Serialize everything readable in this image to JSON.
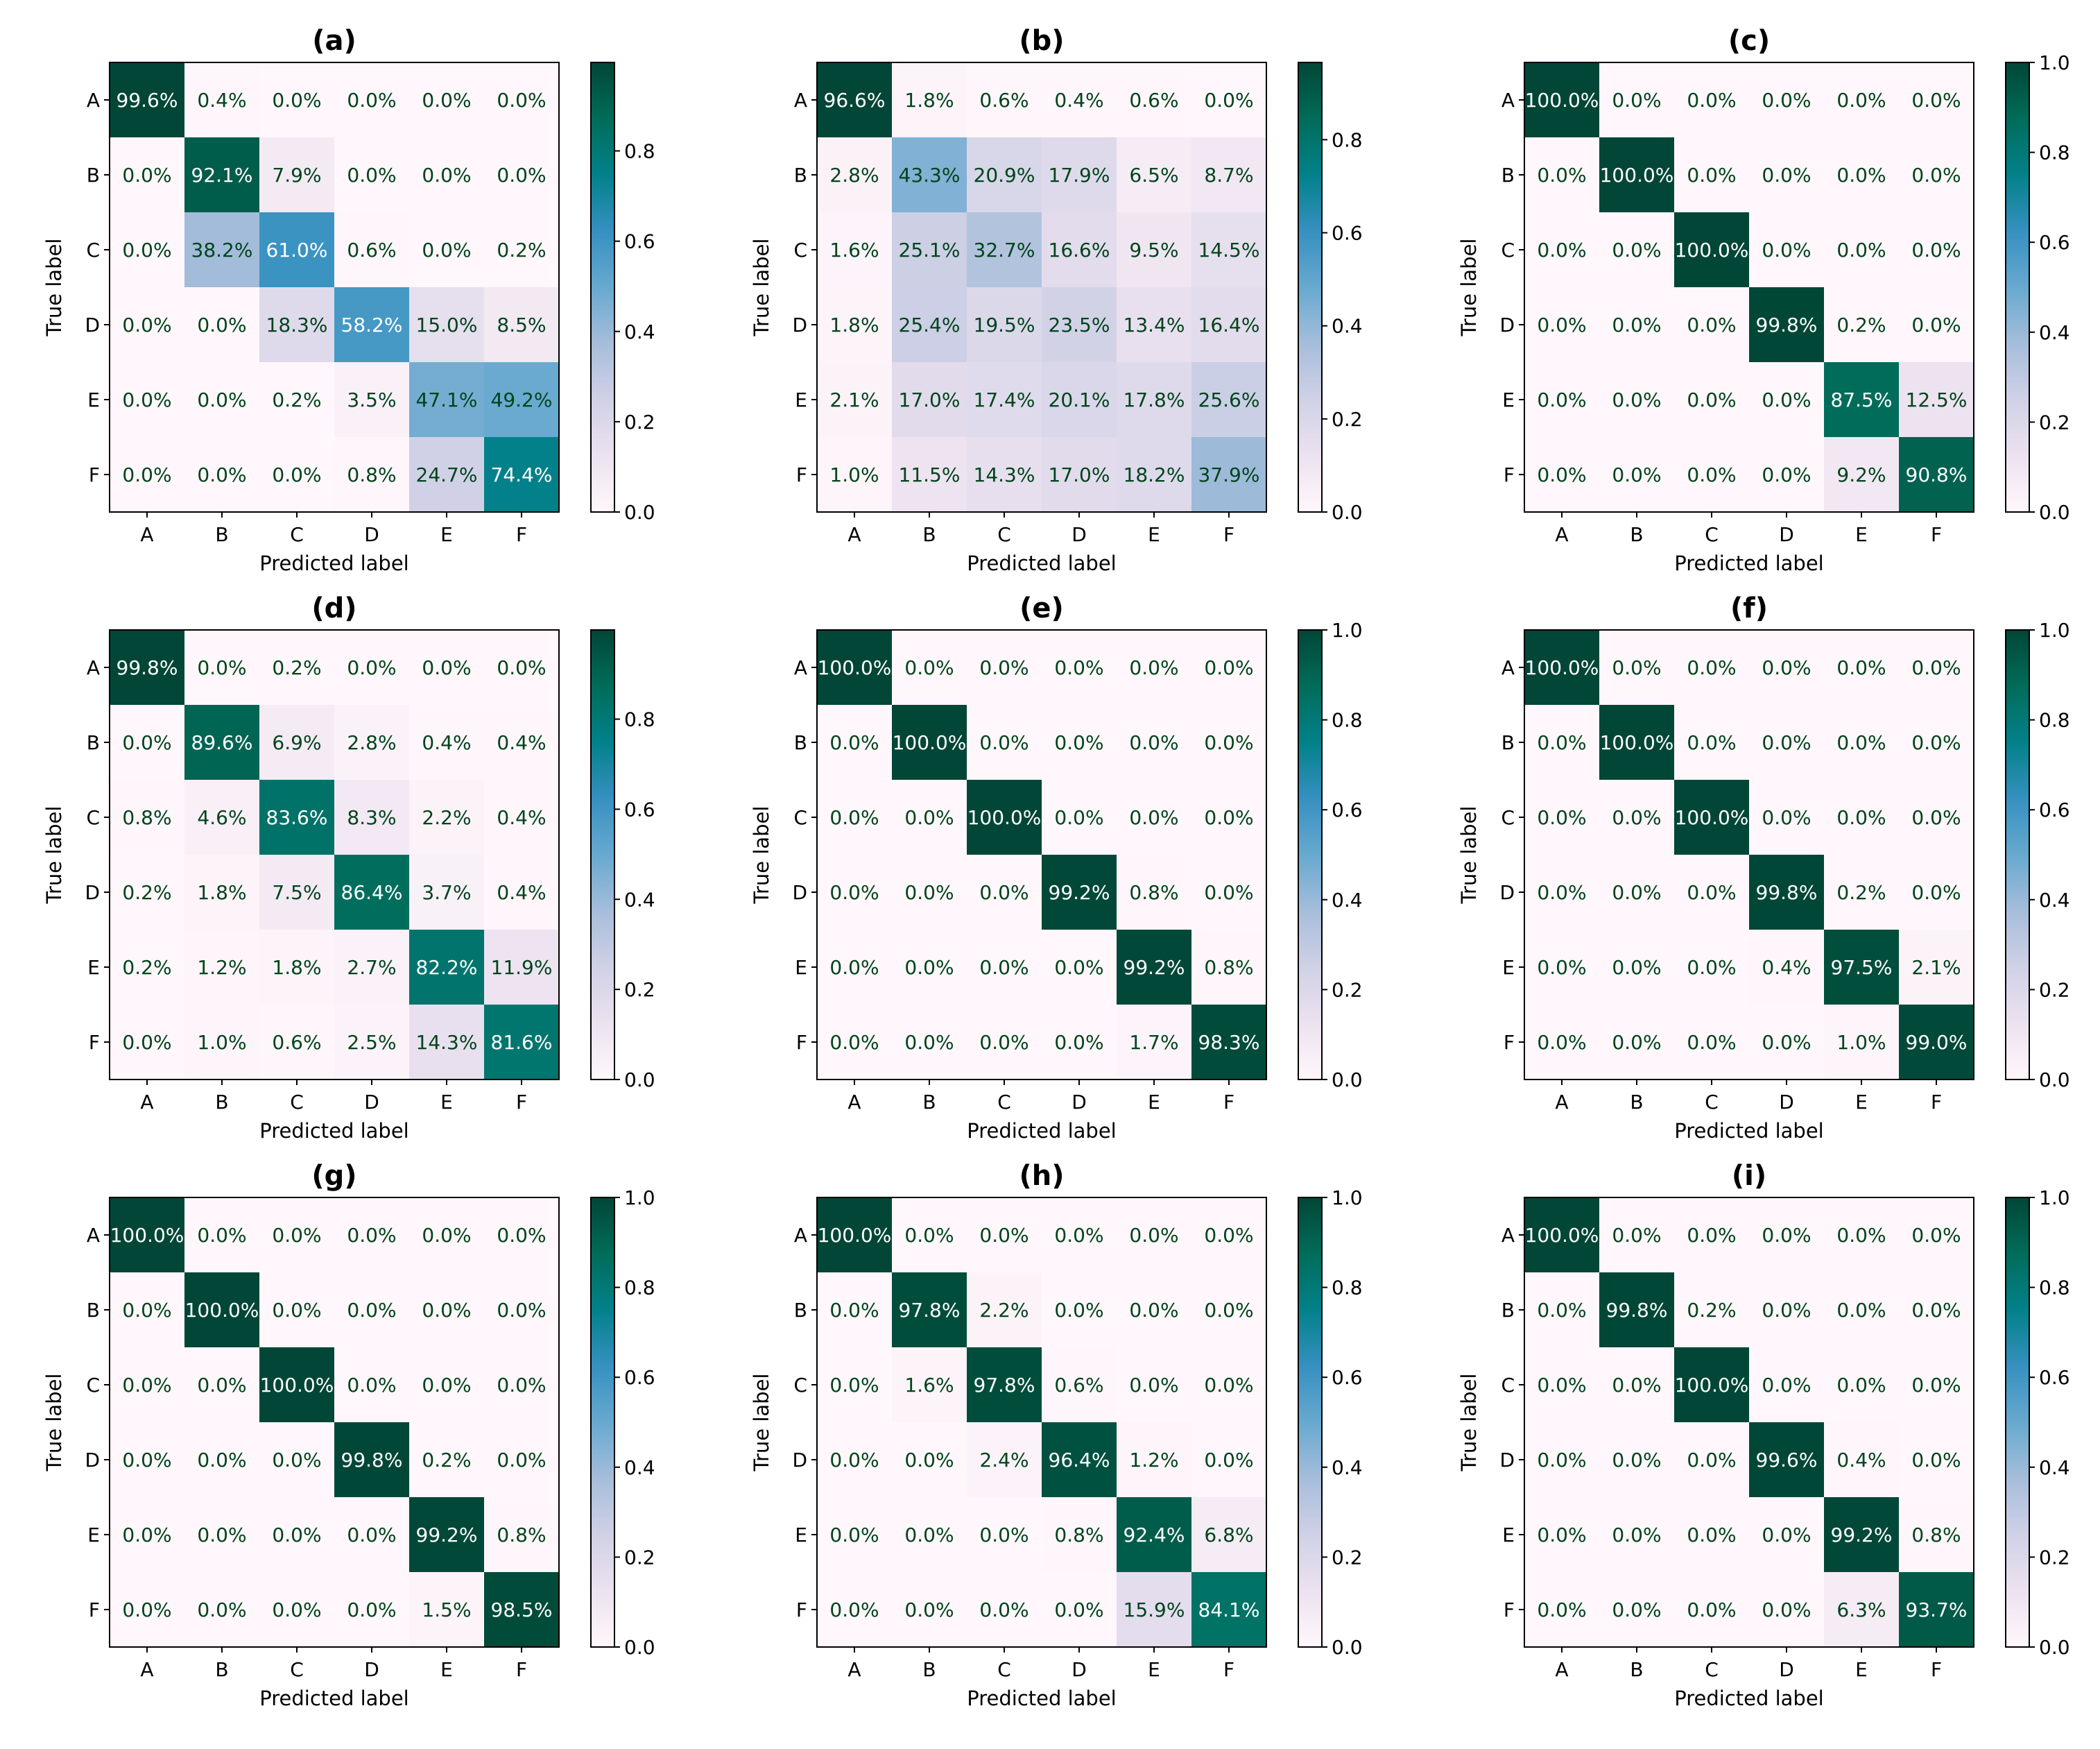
{
  "figure": {
    "colormap": [
      "#fff7fb",
      "#ece2f0",
      "#d0d1e6",
      "#a6bddb",
      "#67a9cf",
      "#3690c0",
      "#02818a",
      "#016c59",
      "#014636"
    ],
    "text_dark": "#00441b",
    "text_light": "#ffffff"
  },
  "chart_data": [
    {
      "type": "heatmap",
      "title": "(a)",
      "xlabel": "Predicted label",
      "ylabel": "True label",
      "categories": [
        "A",
        "B",
        "C",
        "D",
        "E",
        "F"
      ],
      "values": [
        [
          99.6,
          0.4,
          0.0,
          0.0,
          0.0,
          0.0
        ],
        [
          0.0,
          92.1,
          7.9,
          0.0,
          0.0,
          0.0
        ],
        [
          0.0,
          38.2,
          61.0,
          0.6,
          0.0,
          0.2
        ],
        [
          0.0,
          0.0,
          18.3,
          58.2,
          15.0,
          8.5
        ],
        [
          0.0,
          0.0,
          0.2,
          3.5,
          47.1,
          49.2
        ],
        [
          0.0,
          0.0,
          0.0,
          0.8,
          24.7,
          74.4
        ]
      ],
      "colorbar_range": [
        0.0,
        0.996
      ],
      "colorbar_ticks": [
        "0.0",
        "0.2",
        "0.4",
        "0.6",
        "0.8"
      ]
    },
    {
      "type": "heatmap",
      "title": "(b)",
      "xlabel": "Predicted label",
      "ylabel": "True label",
      "categories": [
        "A",
        "B",
        "C",
        "D",
        "E",
        "F"
      ],
      "values": [
        [
          96.6,
          1.8,
          0.6,
          0.4,
          0.6,
          0.0
        ],
        [
          2.8,
          43.3,
          20.9,
          17.9,
          6.5,
          8.7
        ],
        [
          1.6,
          25.1,
          32.7,
          16.6,
          9.5,
          14.5
        ],
        [
          1.8,
          25.4,
          19.5,
          23.5,
          13.4,
          16.4
        ],
        [
          2.1,
          17.0,
          17.4,
          20.1,
          17.8,
          25.6
        ],
        [
          1.0,
          11.5,
          14.3,
          17.0,
          18.2,
          37.9
        ]
      ],
      "colorbar_range": [
        0.0,
        0.966
      ],
      "colorbar_ticks": [
        "0.0",
        "0.2",
        "0.4",
        "0.6",
        "0.8"
      ]
    },
    {
      "type": "heatmap",
      "title": "(c)",
      "xlabel": "Predicted label",
      "ylabel": "True label",
      "categories": [
        "A",
        "B",
        "C",
        "D",
        "E",
        "F"
      ],
      "values": [
        [
          100.0,
          0.0,
          0.0,
          0.0,
          0.0,
          0.0
        ],
        [
          0.0,
          100.0,
          0.0,
          0.0,
          0.0,
          0.0
        ],
        [
          0.0,
          0.0,
          100.0,
          0.0,
          0.0,
          0.0
        ],
        [
          0.0,
          0.0,
          0.0,
          99.8,
          0.2,
          0.0
        ],
        [
          0.0,
          0.0,
          0.0,
          0.0,
          87.5,
          12.5
        ],
        [
          0.0,
          0.0,
          0.0,
          0.0,
          9.2,
          90.8
        ]
      ],
      "colorbar_range": [
        0.0,
        1.0
      ],
      "colorbar_ticks": [
        "0.0",
        "0.2",
        "0.4",
        "0.6",
        "0.8",
        "1.0"
      ]
    },
    {
      "type": "heatmap",
      "title": "(d)",
      "xlabel": "Predicted label",
      "ylabel": "True label",
      "categories": [
        "A",
        "B",
        "C",
        "D",
        "E",
        "F"
      ],
      "values": [
        [
          99.8,
          0.0,
          0.2,
          0.0,
          0.0,
          0.0
        ],
        [
          0.0,
          89.6,
          6.9,
          2.8,
          0.4,
          0.4
        ],
        [
          0.8,
          4.6,
          83.6,
          8.3,
          2.2,
          0.4
        ],
        [
          0.2,
          1.8,
          7.5,
          86.4,
          3.7,
          0.4
        ],
        [
          0.2,
          1.2,
          1.8,
          2.7,
          82.2,
          11.9
        ],
        [
          0.0,
          1.0,
          0.6,
          2.5,
          14.3,
          81.6
        ]
      ],
      "colorbar_range": [
        0.0,
        0.998
      ],
      "colorbar_ticks": [
        "0.0",
        "0.2",
        "0.4",
        "0.6",
        "0.8"
      ]
    },
    {
      "type": "heatmap",
      "title": "(e)",
      "xlabel": "Predicted label",
      "ylabel": "True label",
      "categories": [
        "A",
        "B",
        "C",
        "D",
        "E",
        "F"
      ],
      "values": [
        [
          100.0,
          0.0,
          0.0,
          0.0,
          0.0,
          0.0
        ],
        [
          0.0,
          100.0,
          0.0,
          0.0,
          0.0,
          0.0
        ],
        [
          0.0,
          0.0,
          100.0,
          0.0,
          0.0,
          0.0
        ],
        [
          0.0,
          0.0,
          0.0,
          99.2,
          0.8,
          0.0
        ],
        [
          0.0,
          0.0,
          0.0,
          0.0,
          99.2,
          0.8
        ],
        [
          0.0,
          0.0,
          0.0,
          0.0,
          1.7,
          98.3
        ]
      ],
      "colorbar_range": [
        0.0,
        1.0
      ],
      "colorbar_ticks": [
        "0.0",
        "0.2",
        "0.4",
        "0.6",
        "0.8",
        "1.0"
      ]
    },
    {
      "type": "heatmap",
      "title": "(f)",
      "xlabel": "Predicted label",
      "ylabel": "True label",
      "categories": [
        "A",
        "B",
        "C",
        "D",
        "E",
        "F"
      ],
      "values": [
        [
          100.0,
          0.0,
          0.0,
          0.0,
          0.0,
          0.0
        ],
        [
          0.0,
          100.0,
          0.0,
          0.0,
          0.0,
          0.0
        ],
        [
          0.0,
          0.0,
          100.0,
          0.0,
          0.0,
          0.0
        ],
        [
          0.0,
          0.0,
          0.0,
          99.8,
          0.2,
          0.0
        ],
        [
          0.0,
          0.0,
          0.0,
          0.4,
          97.5,
          2.1
        ],
        [
          0.0,
          0.0,
          0.0,
          0.0,
          1.0,
          99.0
        ]
      ],
      "colorbar_range": [
        0.0,
        1.0
      ],
      "colorbar_ticks": [
        "0.0",
        "0.2",
        "0.4",
        "0.6",
        "0.8",
        "1.0"
      ]
    },
    {
      "type": "heatmap",
      "title": "(g)",
      "xlabel": "Predicted label",
      "ylabel": "True label",
      "categories": [
        "A",
        "B",
        "C",
        "D",
        "E",
        "F"
      ],
      "values": [
        [
          100.0,
          0.0,
          0.0,
          0.0,
          0.0,
          0.0
        ],
        [
          0.0,
          100.0,
          0.0,
          0.0,
          0.0,
          0.0
        ],
        [
          0.0,
          0.0,
          100.0,
          0.0,
          0.0,
          0.0
        ],
        [
          0.0,
          0.0,
          0.0,
          99.8,
          0.2,
          0.0
        ],
        [
          0.0,
          0.0,
          0.0,
          0.0,
          99.2,
          0.8
        ],
        [
          0.0,
          0.0,
          0.0,
          0.0,
          1.5,
          98.5
        ]
      ],
      "colorbar_range": [
        0.0,
        1.0
      ],
      "colorbar_ticks": [
        "0.0",
        "0.2",
        "0.4",
        "0.6",
        "0.8",
        "1.0"
      ]
    },
    {
      "type": "heatmap",
      "title": "(h)",
      "xlabel": "Predicted label",
      "ylabel": "True label",
      "categories": [
        "A",
        "B",
        "C",
        "D",
        "E",
        "F"
      ],
      "values": [
        [
          100.0,
          0.0,
          0.0,
          0.0,
          0.0,
          0.0
        ],
        [
          0.0,
          97.8,
          2.2,
          0.0,
          0.0,
          0.0
        ],
        [
          0.0,
          1.6,
          97.8,
          0.6,
          0.0,
          0.0
        ],
        [
          0.0,
          0.0,
          2.4,
          96.4,
          1.2,
          0.0
        ],
        [
          0.0,
          0.0,
          0.0,
          0.8,
          92.4,
          6.8
        ],
        [
          0.0,
          0.0,
          0.0,
          0.0,
          15.9,
          84.1
        ]
      ],
      "colorbar_range": [
        0.0,
        1.0
      ],
      "colorbar_ticks": [
        "0.0",
        "0.2",
        "0.4",
        "0.6",
        "0.8",
        "1.0"
      ]
    },
    {
      "type": "heatmap",
      "title": "(i)",
      "xlabel": "Predicted label",
      "ylabel": "True label",
      "categories": [
        "A",
        "B",
        "C",
        "D",
        "E",
        "F"
      ],
      "values": [
        [
          100.0,
          0.0,
          0.0,
          0.0,
          0.0,
          0.0
        ],
        [
          0.0,
          99.8,
          0.2,
          0.0,
          0.0,
          0.0
        ],
        [
          0.0,
          0.0,
          100.0,
          0.0,
          0.0,
          0.0
        ],
        [
          0.0,
          0.0,
          0.0,
          99.6,
          0.4,
          0.0
        ],
        [
          0.0,
          0.0,
          0.0,
          0.0,
          99.2,
          0.8
        ],
        [
          0.0,
          0.0,
          0.0,
          0.0,
          6.3,
          93.7
        ]
      ],
      "colorbar_range": [
        0.0,
        1.0
      ],
      "colorbar_ticks": [
        "0.0",
        "0.2",
        "0.4",
        "0.6",
        "0.8",
        "1.0"
      ]
    }
  ]
}
